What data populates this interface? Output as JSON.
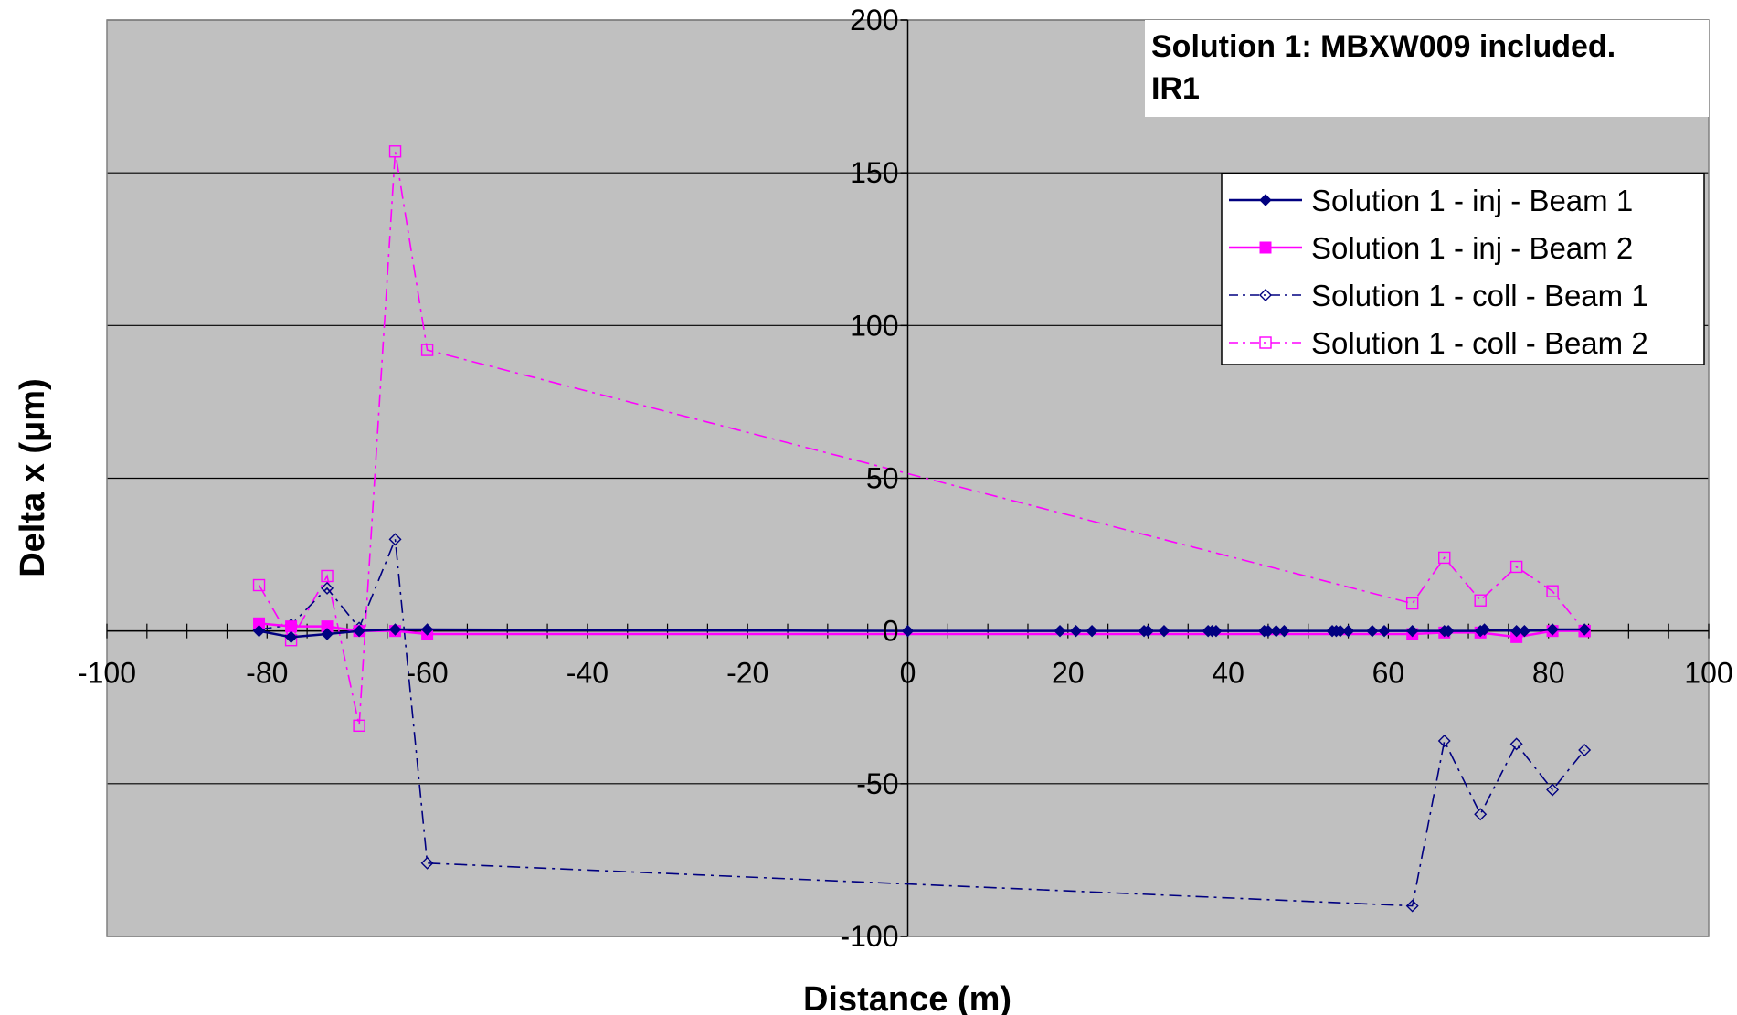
{
  "chart_data": {
    "type": "line",
    "xlabel": "Distance (m)",
    "ylabel": "Delta x (μm)",
    "xlim": [
      -100,
      100
    ],
    "ylim": [
      -100,
      200
    ],
    "x_ticks": [
      -100,
      -80,
      -60,
      -40,
      -20,
      0,
      20,
      40,
      60,
      80,
      100
    ],
    "y_ticks": [
      -100,
      -50,
      0,
      50,
      100,
      150,
      200
    ],
    "grid": "horizontal",
    "plot_background": "#c0c0c0",
    "annotation": [
      "Solution 1: MBXW009 included.",
      "IR1"
    ],
    "legend_position": "top-right",
    "series": [
      {
        "name": "Solution 1 - inj - Beam 1",
        "color": "#000080",
        "line": "solid",
        "marker": "diamond-filled",
        "x": [
          -81,
          -77,
          -72.5,
          -68.5,
          -64,
          -60,
          0,
          19,
          21,
          23,
          29.5,
          30,
          32,
          37.5,
          38,
          38.5,
          44.5,
          45,
          46,
          47,
          53,
          53.5,
          54,
          55,
          58,
          59.5,
          63,
          67,
          67.5,
          71.5,
          72,
          76,
          77,
          80.5,
          84.5
        ],
        "y": [
          0,
          -2,
          -1,
          0,
          0.5,
          0.5,
          0,
          0,
          0,
          0,
          0,
          0,
          0,
          0,
          0,
          0,
          0,
          0,
          0,
          0,
          0,
          0,
          0,
          0,
          0,
          0,
          0,
          0,
          0,
          0,
          0.5,
          0,
          0,
          0.5,
          0.5
        ]
      },
      {
        "name": "Solution 1 - inj - Beam 2",
        "color": "#ff00ff",
        "line": "solid",
        "marker": "square-filled",
        "x": [
          -81,
          -77,
          -72.5,
          -68.5,
          -64,
          -60,
          63,
          67,
          71.5,
          76,
          80.5,
          84.5
        ],
        "y": [
          2.5,
          1.5,
          1.5,
          0,
          0,
          -1,
          -1,
          -0.5,
          -0.5,
          -2,
          0,
          0
        ]
      },
      {
        "name": "Solution 1 - coll - Beam 1",
        "color": "#000080",
        "line": "dash-dot",
        "marker": "diamond-open",
        "x": [
          -81,
          -77,
          -72.5,
          -68.5,
          -64,
          -60,
          63,
          67,
          71.5,
          76,
          80.5,
          84.5
        ],
        "y": [
          0.5,
          2,
          14,
          1,
          30,
          -76,
          -90,
          -36,
          -60,
          -37,
          -52,
          -39
        ]
      },
      {
        "name": "Solution 1 - coll - Beam 2",
        "color": "#ff00ff",
        "line": "dash-dot",
        "marker": "square-open",
        "x": [
          -81,
          -77,
          -72.5,
          -68.5,
          -64,
          -60,
          63,
          67,
          71.5,
          76,
          80.5,
          84.5
        ],
        "y": [
          15,
          -3,
          18,
          -31,
          157,
          92,
          9,
          24,
          10,
          21,
          13,
          0
        ]
      }
    ]
  }
}
